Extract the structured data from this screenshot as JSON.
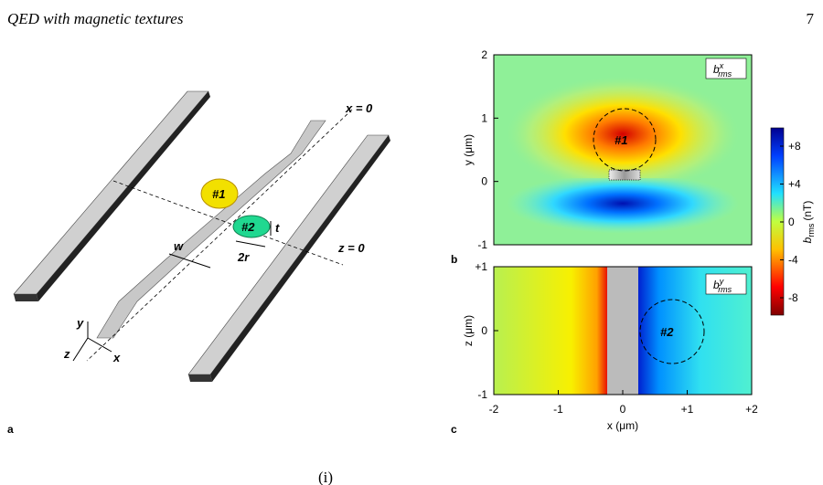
{
  "header": {
    "title": "QED with magnetic textures",
    "page_number": "7"
  },
  "panel_a": {
    "label": "a",
    "x_zero": "x = 0",
    "z_zero": "z = 0",
    "disk_1": "#1",
    "disk_2": "#2",
    "width": "w",
    "thickness": "t",
    "diameter": "2r",
    "axis_y": "y",
    "axis_z": "z",
    "axis_x": "x"
  },
  "panel_b": {
    "label": "b",
    "field": {
      "symbol": "b",
      "superscript": "x",
      "subscript": "rms"
    },
    "y_axis_label": "y (μm)",
    "y_ticks": [
      "2",
      "1",
      "0",
      "-1"
    ],
    "disk": "#1"
  },
  "panel_c": {
    "label": "c",
    "field": {
      "symbol": "b",
      "superscript": "y",
      "subscript": "rms"
    },
    "z_axis_label": "z (μm)",
    "z_ticks": [
      "+1",
      "0",
      "-1"
    ],
    "x_ticks": [
      "-2",
      "-1",
      "0",
      "+1",
      "+2"
    ],
    "x_axis_label": "x (μm)",
    "disk": "#2"
  },
  "colorbar": {
    "symbol": "b",
    "subscript": "rms",
    "unit": "(nT)",
    "ticks": [
      "+8",
      "+4",
      "0",
      "-4",
      "-8"
    ]
  },
  "footer_fragment": "(i)"
}
